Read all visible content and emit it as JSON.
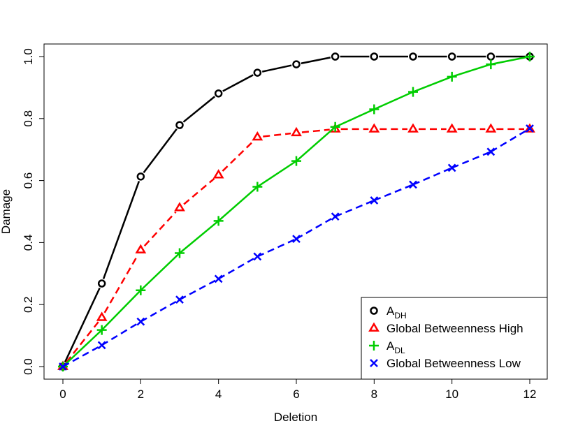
{
  "chart_data": {
    "type": "line",
    "title": "",
    "xlabel": "Deletion",
    "ylabel": "Damage",
    "xlim": [
      0,
      12
    ],
    "ylim": [
      0,
      1
    ],
    "xticks": [
      "0",
      "2",
      "4",
      "6",
      "8",
      "10",
      "12"
    ],
    "yticks": [
      "0.0",
      "0.2",
      "0.4",
      "0.6",
      "0.8",
      "1.0"
    ],
    "grid": false,
    "legend_position": "bottom-right",
    "x": [
      0,
      1,
      2,
      3,
      4,
      5,
      6,
      7,
      8,
      9,
      10,
      11,
      12
    ],
    "series": [
      {
        "name": "A",
        "subscript": "DH",
        "color": "#000000",
        "line": "solid",
        "marker": "circle",
        "values": [
          0.0,
          0.268,
          0.613,
          0.779,
          0.881,
          0.948,
          0.975,
          1.0,
          1.0,
          1.0,
          1.0,
          1.0,
          1.0
        ]
      },
      {
        "name": "Global Betweenness High",
        "color": "#ff0000",
        "line": "dashed",
        "marker": "triangle",
        "values": [
          0.0,
          0.158,
          0.376,
          0.512,
          0.618,
          0.74,
          0.754,
          0.766,
          0.766,
          0.766,
          0.766,
          0.766,
          0.766
        ]
      },
      {
        "name": "A",
        "subscript": "DL",
        "color": "#00cd00",
        "line": "solid",
        "marker": "plus",
        "values": [
          0.0,
          0.118,
          0.246,
          0.366,
          0.47,
          0.58,
          0.663,
          0.773,
          0.83,
          0.886,
          0.935,
          0.975,
          1.0
        ]
      },
      {
        "name": "Global Betweenness Low",
        "color": "#0000ff",
        "line": "dashed",
        "marker": "cross",
        "values": [
          0.0,
          0.069,
          0.145,
          0.216,
          0.283,
          0.355,
          0.412,
          0.484,
          0.536,
          0.587,
          0.641,
          0.693,
          0.768
        ]
      }
    ]
  }
}
